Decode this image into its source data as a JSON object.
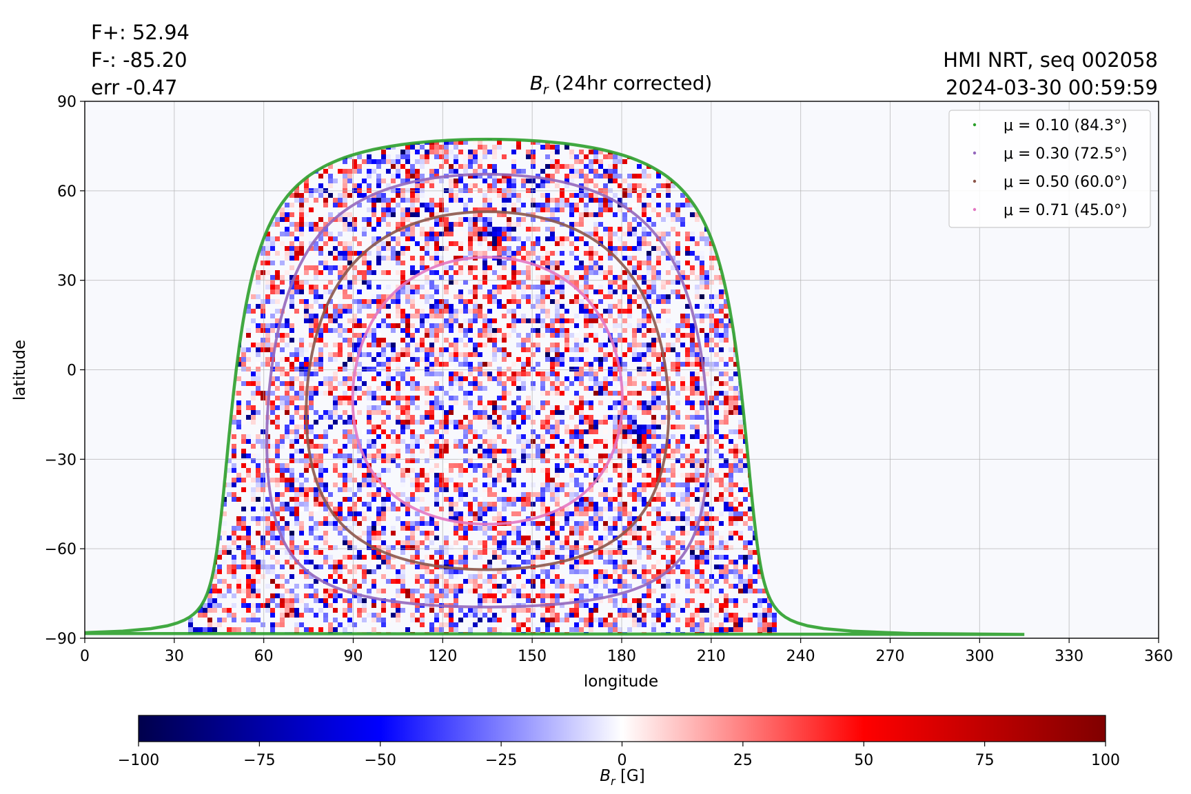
{
  "annotations": {
    "flux_plus": "F+: 52.94",
    "flux_minus": "F-: -85.20",
    "error": "err -0.47",
    "source": "HMI NRT, seq 002058",
    "timestamp": "2024-03-30 00:59:59"
  },
  "colorbar": {
    "colormap": "seismic",
    "colors": [
      "#00004c",
      "#0000ff",
      "#ffffff",
      "#ff0000",
      "#800000"
    ],
    "ticks": [
      "−100",
      "−75",
      "−50",
      "−25",
      "0",
      "25",
      "50",
      "75",
      "100"
    ],
    "range": [
      -100,
      100
    ],
    "label": "B",
    "label_sub": "r",
    "label_unit": "[G]"
  },
  "chart_data": {
    "type": "heatmap",
    "title": "B",
    "title_sub": "r",
    "title_rest": " (24hr corrected)",
    "xlabel": "longitude",
    "ylabel": "latitude",
    "xlim": [
      0,
      360
    ],
    "ylim": [
      -90,
      90
    ],
    "xticks": [
      "0",
      "30",
      "60",
      "90",
      "120",
      "150",
      "180",
      "210",
      "240",
      "270",
      "300",
      "330",
      "360"
    ],
    "yticks": [
      "90",
      "60",
      "30",
      "0",
      "−30",
      "−60",
      "−90"
    ],
    "grid": true,
    "legend_position": "top-right",
    "disk_center_longitude": 135,
    "series": [
      {
        "name": "μ = 0.10 (84.3°)",
        "mu": 0.1,
        "color": "#2ca02c"
      },
      {
        "name": "μ = 0.30 (72.5°)",
        "mu": 0.3,
        "color": "#9467bd"
      },
      {
        "name": "μ = 0.50 (60.0°)",
        "mu": 0.5,
        "color": "#8c564b"
      },
      {
        "name": "μ = 0.71 (45.0°)",
        "mu": 0.71,
        "color": "#e377c2"
      }
    ]
  }
}
